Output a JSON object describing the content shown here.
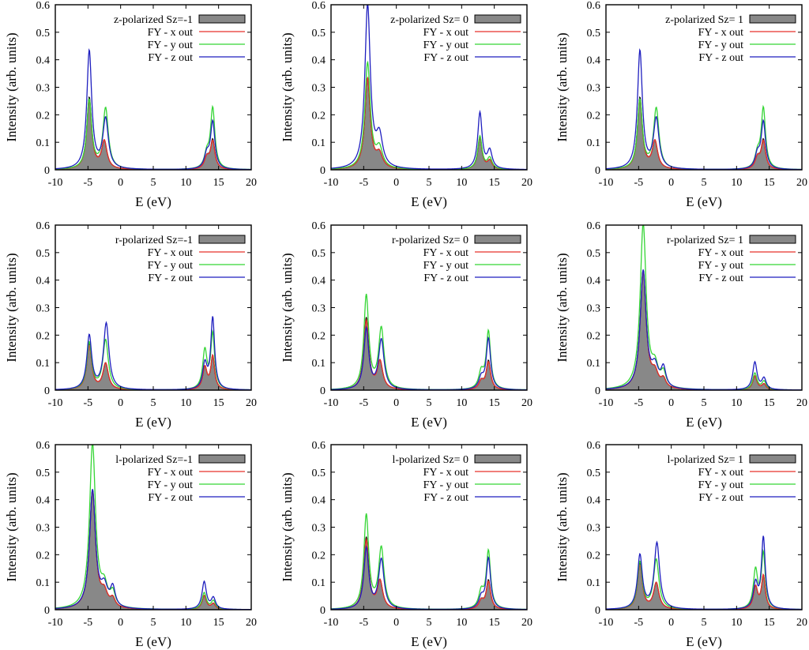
{
  "figure": {
    "xlabel": "E (eV)",
    "ylabel": "Intensity (arb. units)",
    "xlim": [
      -10,
      20
    ],
    "ylim": [
      0,
      0.6
    ],
    "xticks": [
      -10,
      -5,
      0,
      5,
      10,
      15,
      20
    ],
    "yticks": [
      0,
      0.1,
      0.2,
      0.3,
      0.4,
      0.5,
      0.6
    ],
    "colors": {
      "total": "#000000",
      "fill": "#888888",
      "x_out": "#e8322a",
      "y_out": "#34d534",
      "z_out": "#1f1fbf"
    }
  },
  "chart_data": [
    {
      "type": "line",
      "title": "z-polarized Sz=-1",
      "xlabel": "E (eV)",
      "ylabel": "Intensity (arb. units)",
      "xlim": [
        -10,
        20
      ],
      "ylim": [
        0,
        0.6
      ],
      "legend": "top-right",
      "series": [
        {
          "name": "z-polarized Sz=-1",
          "style": "filled",
          "peaks": [
            [
              -4.8,
              0.26,
              0.45
            ],
            [
              -2.5,
              0.1,
              0.5
            ],
            [
              13.2,
              0.04,
              0.45
            ],
            [
              14.1,
              0.105,
              0.4
            ]
          ]
        },
        {
          "name": "FY - x out",
          "peaks": [
            [
              -4.8,
              0.25,
              0.45
            ],
            [
              -2.5,
              0.1,
              0.5
            ],
            [
              13.2,
              0.04,
              0.45
            ],
            [
              14.1,
              0.1,
              0.4
            ]
          ]
        },
        {
          "name": "FY - y out",
          "peaks": [
            [
              -4.8,
              0.25,
              0.45
            ],
            [
              -2.3,
              0.22,
              0.5
            ],
            [
              13.2,
              0.05,
              0.45
            ],
            [
              14.1,
              0.22,
              0.4
            ]
          ]
        },
        {
          "name": "FY - z out",
          "peaks": [
            [
              -4.8,
              0.43,
              0.45
            ],
            [
              -2.3,
              0.18,
              0.5
            ],
            [
              13.2,
              0.05,
              0.45
            ],
            [
              14.1,
              0.17,
              0.4
            ]
          ]
        }
      ]
    },
    {
      "type": "line",
      "title": "z-polarized Sz= 0",
      "xlabel": "E (eV)",
      "ylabel": "Intensity (arb. units)",
      "xlim": [
        -10,
        20
      ],
      "ylim": [
        0,
        0.6
      ],
      "legend": "top-right",
      "series": [
        {
          "name": "z-polarized Sz= 0",
          "style": "filled",
          "peaks": [
            [
              -4.4,
              0.33,
              0.5
            ],
            [
              -2.6,
              0.05,
              0.6
            ],
            [
              12.8,
              0.115,
              0.4
            ],
            [
              14.3,
              0.03,
              0.45
            ]
          ]
        },
        {
          "name": "FY - x out",
          "peaks": [
            [
              -4.4,
              0.33,
              0.5
            ],
            [
              -2.6,
              0.05,
              0.6
            ],
            [
              12.8,
              0.115,
              0.4
            ],
            [
              14.3,
              0.03,
              0.45
            ]
          ]
        },
        {
          "name": "FY - y out",
          "peaks": [
            [
              -4.4,
              0.385,
              0.5
            ],
            [
              -2.6,
              0.07,
              0.6
            ],
            [
              12.8,
              0.12,
              0.4
            ],
            [
              14.3,
              0.04,
              0.45
            ]
          ]
        },
        {
          "name": "FY - z out",
          "peaks": [
            [
              -4.4,
              0.595,
              0.5
            ],
            [
              -2.6,
              0.11,
              0.6
            ],
            [
              12.8,
              0.205,
              0.4
            ],
            [
              14.3,
              0.065,
              0.45
            ]
          ]
        }
      ]
    },
    {
      "type": "line",
      "title": "z-polarized Sz= 1",
      "xlabel": "E (eV)",
      "ylabel": "Intensity (arb. units)",
      "xlim": [
        -10,
        20
      ],
      "ylim": [
        0,
        0.6
      ],
      "legend": "top-right",
      "series": [
        {
          "name": "z-polarized Sz= 1",
          "style": "filled",
          "peaks": [
            [
              -4.8,
              0.26,
              0.45
            ],
            [
              -2.5,
              0.1,
              0.5
            ],
            [
              13.2,
              0.04,
              0.45
            ],
            [
              14.1,
              0.105,
              0.4
            ]
          ]
        },
        {
          "name": "FY - x out",
          "peaks": [
            [
              -4.8,
              0.25,
              0.45
            ],
            [
              -2.5,
              0.1,
              0.5
            ],
            [
              13.2,
              0.04,
              0.45
            ],
            [
              14.1,
              0.1,
              0.4
            ]
          ]
        },
        {
          "name": "FY - y out",
          "peaks": [
            [
              -4.8,
              0.25,
              0.45
            ],
            [
              -2.3,
              0.22,
              0.5
            ],
            [
              13.2,
              0.05,
              0.45
            ],
            [
              14.1,
              0.22,
              0.4
            ]
          ]
        },
        {
          "name": "FY - z out",
          "peaks": [
            [
              -4.8,
              0.43,
              0.45
            ],
            [
              -2.3,
              0.18,
              0.5
            ],
            [
              13.2,
              0.05,
              0.45
            ],
            [
              14.1,
              0.17,
              0.4
            ]
          ]
        }
      ]
    },
    {
      "type": "line",
      "title": "r-polarized Sz=-1",
      "xlabel": "E (eV)",
      "ylabel": "Intensity (arb. units)",
      "xlim": [
        -10,
        20
      ],
      "ylim": [
        0,
        0.6
      ],
      "legend": "top-right",
      "series": [
        {
          "name": "r-polarized Sz=-1",
          "style": "filled",
          "peaks": [
            [
              -4.8,
              0.165,
              0.45
            ],
            [
              -2.3,
              0.095,
              0.5
            ],
            [
              12.9,
              0.08,
              0.4
            ],
            [
              14.1,
              0.12,
              0.35
            ]
          ]
        },
        {
          "name": "FY - x out",
          "peaks": [
            [
              -4.8,
              0.16,
              0.45
            ],
            [
              -2.3,
              0.095,
              0.5
            ],
            [
              12.9,
              0.08,
              0.4
            ],
            [
              14.1,
              0.12,
              0.35
            ]
          ]
        },
        {
          "name": "FY - y out",
          "peaks": [
            [
              -4.8,
              0.17,
              0.45
            ],
            [
              -2.3,
              0.18,
              0.5
            ],
            [
              12.9,
              0.14,
              0.4
            ],
            [
              14.1,
              0.2,
              0.35
            ]
          ]
        },
        {
          "name": "FY - z out",
          "peaks": [
            [
              -4.8,
              0.195,
              0.45
            ],
            [
              -2.2,
              0.24,
              0.5
            ],
            [
              12.9,
              0.09,
              0.4
            ],
            [
              14.1,
              0.26,
              0.35
            ]
          ]
        }
      ]
    },
    {
      "type": "line",
      "title": "r-polarized Sz= 0",
      "xlabel": "E (eV)",
      "ylabel": "Intensity (arb. units)",
      "xlim": [
        -10,
        20
      ],
      "ylim": [
        0,
        0.6
      ],
      "legend": "top-right",
      "series": [
        {
          "name": "r-polarized Sz= 0",
          "style": "filled",
          "peaks": [
            [
              -4.6,
              0.26,
              0.45
            ],
            [
              -2.5,
              0.1,
              0.5
            ],
            [
              13.0,
              0.03,
              0.45
            ],
            [
              14.1,
              0.105,
              0.4
            ]
          ]
        },
        {
          "name": "FY - x out",
          "peaks": [
            [
              -4.6,
              0.25,
              0.45
            ],
            [
              -2.5,
              0.1,
              0.5
            ],
            [
              13.0,
              0.03,
              0.45
            ],
            [
              14.1,
              0.1,
              0.4
            ]
          ]
        },
        {
          "name": "FY - y out",
          "peaks": [
            [
              -4.6,
              0.34,
              0.45
            ],
            [
              -2.3,
              0.22,
              0.5
            ],
            [
              13.0,
              0.06,
              0.45
            ],
            [
              14.1,
              0.21,
              0.4
            ]
          ]
        },
        {
          "name": "FY - z out",
          "peaks": [
            [
              -4.6,
              0.22,
              0.45
            ],
            [
              -2.3,
              0.18,
              0.5
            ],
            [
              13.0,
              0.04,
              0.45
            ],
            [
              14.1,
              0.185,
              0.4
            ]
          ]
        }
      ]
    },
    {
      "type": "line",
      "title": "r-polarized Sz= 1",
      "xlabel": "E (eV)",
      "ylabel": "Intensity (arb. units)",
      "xlim": [
        -10,
        20
      ],
      "ylim": [
        0,
        0.6
      ],
      "legend": "top-right",
      "series": [
        {
          "name": "r-polarized Sz= 1",
          "style": "filled",
          "peaks": [
            [
              -4.3,
              0.43,
              0.55
            ],
            [
              -2.5,
              0.05,
              0.6
            ],
            [
              -1.2,
              0.03,
              0.45
            ],
            [
              12.8,
              0.05,
              0.4
            ],
            [
              14.2,
              0.02,
              0.4
            ]
          ]
        },
        {
          "name": "FY - x out",
          "peaks": [
            [
              -4.3,
              0.43,
              0.55
            ],
            [
              -2.5,
              0.05,
              0.6
            ],
            [
              -1.2,
              0.03,
              0.45
            ],
            [
              12.8,
              0.05,
              0.4
            ],
            [
              14.2,
              0.02,
              0.4
            ]
          ]
        },
        {
          "name": "FY - y out",
          "peaks": [
            [
              -4.3,
              0.6,
              0.55
            ],
            [
              -2.5,
              0.07,
              0.6
            ],
            [
              -1.2,
              0.05,
              0.45
            ],
            [
              12.8,
              0.06,
              0.4
            ],
            [
              14.2,
              0.03,
              0.4
            ]
          ]
        },
        {
          "name": "FY - z out",
          "peaks": [
            [
              -4.3,
              0.43,
              0.55
            ],
            [
              -2.5,
              0.07,
              0.6
            ],
            [
              -1.2,
              0.07,
              0.45
            ],
            [
              12.8,
              0.1,
              0.4
            ],
            [
              14.2,
              0.04,
              0.4
            ]
          ]
        }
      ]
    },
    {
      "type": "line",
      "title": "l-polarized Sz=-1",
      "xlabel": "E (eV)",
      "ylabel": "Intensity (arb. units)",
      "xlim": [
        -10,
        20
      ],
      "ylim": [
        0,
        0.6
      ],
      "legend": "top-right",
      "series": [
        {
          "name": "l-polarized Sz=-1",
          "style": "filled",
          "peaks": [
            [
              -4.3,
              0.43,
              0.55
            ],
            [
              -2.5,
              0.05,
              0.6
            ],
            [
              -1.2,
              0.03,
              0.45
            ],
            [
              12.8,
              0.05,
              0.4
            ],
            [
              14.2,
              0.02,
              0.4
            ]
          ]
        },
        {
          "name": "FY - x out",
          "peaks": [
            [
              -4.3,
              0.43,
              0.55
            ],
            [
              -2.5,
              0.05,
              0.6
            ],
            [
              -1.2,
              0.03,
              0.45
            ],
            [
              12.8,
              0.05,
              0.4
            ],
            [
              14.2,
              0.02,
              0.4
            ]
          ]
        },
        {
          "name": "FY - y out",
          "peaks": [
            [
              -4.3,
              0.6,
              0.55
            ],
            [
              -2.5,
              0.07,
              0.6
            ],
            [
              -1.2,
              0.05,
              0.45
            ],
            [
              12.8,
              0.06,
              0.4
            ],
            [
              14.2,
              0.03,
              0.4
            ]
          ]
        },
        {
          "name": "FY - z out",
          "peaks": [
            [
              -4.3,
              0.43,
              0.55
            ],
            [
              -2.5,
              0.07,
              0.6
            ],
            [
              -1.2,
              0.07,
              0.45
            ],
            [
              12.8,
              0.1,
              0.4
            ],
            [
              14.2,
              0.04,
              0.4
            ]
          ]
        }
      ]
    },
    {
      "type": "line",
      "title": "l-polarized Sz= 0",
      "xlabel": "E (eV)",
      "ylabel": "Intensity (arb. units)",
      "xlim": [
        -10,
        20
      ],
      "ylim": [
        0,
        0.6
      ],
      "legend": "top-right",
      "series": [
        {
          "name": "l-polarized Sz= 0",
          "style": "filled",
          "peaks": [
            [
              -4.6,
              0.26,
              0.45
            ],
            [
              -2.5,
              0.1,
              0.5
            ],
            [
              13.0,
              0.03,
              0.45
            ],
            [
              14.1,
              0.105,
              0.4
            ]
          ]
        },
        {
          "name": "FY - x out",
          "peaks": [
            [
              -4.6,
              0.25,
              0.45
            ],
            [
              -2.5,
              0.1,
              0.5
            ],
            [
              13.0,
              0.03,
              0.45
            ],
            [
              14.1,
              0.1,
              0.4
            ]
          ]
        },
        {
          "name": "FY - y out",
          "peaks": [
            [
              -4.6,
              0.34,
              0.45
            ],
            [
              -2.3,
              0.22,
              0.5
            ],
            [
              13.0,
              0.06,
              0.45
            ],
            [
              14.1,
              0.21,
              0.4
            ]
          ]
        },
        {
          "name": "FY - z out",
          "peaks": [
            [
              -4.6,
              0.22,
              0.45
            ],
            [
              -2.3,
              0.18,
              0.5
            ],
            [
              13.0,
              0.04,
              0.45
            ],
            [
              14.1,
              0.185,
              0.4
            ]
          ]
        }
      ]
    },
    {
      "type": "line",
      "title": "l-polarized Sz= 1",
      "xlabel": "E (eV)",
      "ylabel": "Intensity (arb. units)",
      "xlim": [
        -10,
        20
      ],
      "ylim": [
        0,
        0.6
      ],
      "legend": "top-right",
      "series": [
        {
          "name": "l-polarized Sz= 1",
          "style": "filled",
          "peaks": [
            [
              -4.8,
              0.165,
              0.45
            ],
            [
              -2.3,
              0.095,
              0.5
            ],
            [
              12.9,
              0.08,
              0.4
            ],
            [
              14.1,
              0.12,
              0.35
            ]
          ]
        },
        {
          "name": "FY - x out",
          "peaks": [
            [
              -4.8,
              0.16,
              0.45
            ],
            [
              -2.3,
              0.095,
              0.5
            ],
            [
              12.9,
              0.08,
              0.4
            ],
            [
              14.1,
              0.12,
              0.35
            ]
          ]
        },
        {
          "name": "FY - y out",
          "peaks": [
            [
              -4.8,
              0.17,
              0.45
            ],
            [
              -2.3,
              0.18,
              0.5
            ],
            [
              12.9,
              0.14,
              0.4
            ],
            [
              14.1,
              0.2,
              0.35
            ]
          ]
        },
        {
          "name": "FY - z out",
          "peaks": [
            [
              -4.8,
              0.195,
              0.45
            ],
            [
              -2.2,
              0.24,
              0.5
            ],
            [
              12.9,
              0.09,
              0.4
            ],
            [
              14.1,
              0.26,
              0.35
            ]
          ]
        }
      ]
    }
  ]
}
